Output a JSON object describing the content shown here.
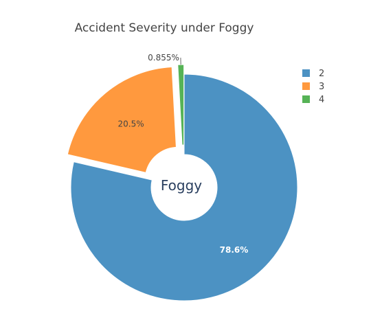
{
  "chart_data": {
    "type": "pie",
    "title": "Accident Severity under Foggy",
    "center_label": "Foggy",
    "hole": true,
    "legend_position": "top-right",
    "slices": [
      {
        "label": "2",
        "value": 78.6,
        "display": "78.6%",
        "color": "#4c92c3",
        "label_color": "#ffffff",
        "label_position": "inside",
        "pulled": false
      },
      {
        "label": "3",
        "value": 20.5,
        "display": "20.5%",
        "color": "#ff993e",
        "label_color": "#444444",
        "label_position": "inside",
        "pulled": true
      },
      {
        "label": "4",
        "value": 0.855,
        "display": "0.855%",
        "color": "#56b356",
        "label_color": "#444444",
        "label_position": "outside",
        "pulled": true
      }
    ]
  }
}
